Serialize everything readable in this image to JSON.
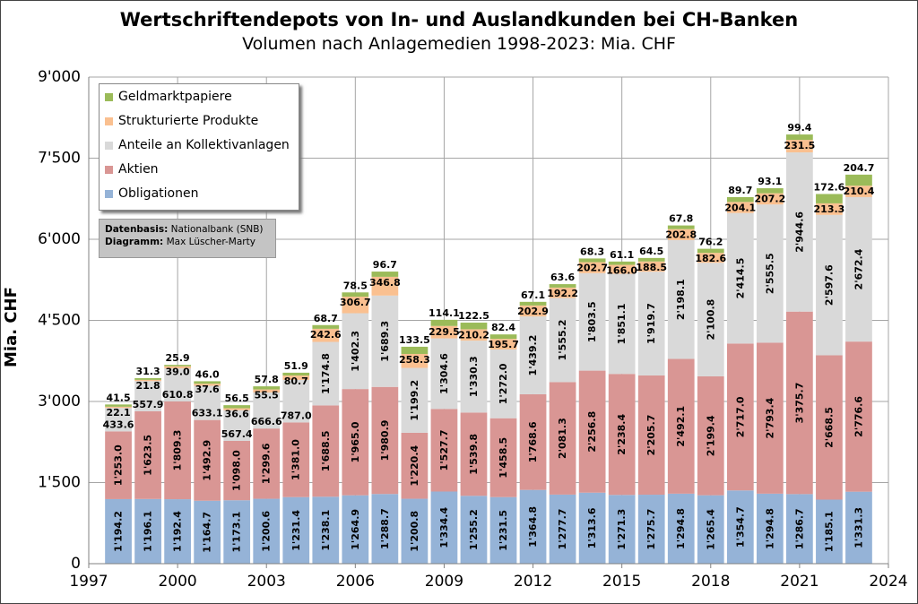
{
  "chart_data": {
    "type": "bar",
    "stacked": true,
    "title": "Wertschriftendepots  von In- und Auslandkunden bei CH-Banken",
    "subtitle": "Volumen nach Anlagemedien 1998-2023: Mia. CHF",
    "ylabel": "Mia. CHF",
    "xlabel": "",
    "ylim": [
      0,
      9000
    ],
    "xlim": [
      1997,
      2024
    ],
    "grid": true,
    "legend_position": "top-left",
    "y_ticks": [
      "0",
      "1'500",
      "3'000",
      "4'500",
      "6'000",
      "7'500",
      "9'000"
    ],
    "y_tick_values": [
      0,
      1500,
      3000,
      4500,
      6000,
      7500,
      9000
    ],
    "x_ticks": [
      "1997",
      "2000",
      "2003",
      "2006",
      "2009",
      "2012",
      "2015",
      "2018",
      "2021",
      "2024"
    ],
    "x_tick_values": [
      1997,
      2000,
      2003,
      2006,
      2009,
      2012,
      2015,
      2018,
      2021,
      2024
    ],
    "years": [
      1998,
      1999,
      2000,
      2001,
      2002,
      2003,
      2004,
      2005,
      2006,
      2007,
      2008,
      2009,
      2010,
      2011,
      2012,
      2013,
      2014,
      2015,
      2016,
      2017,
      2018,
      2019,
      2020,
      2021,
      2022,
      2023
    ],
    "series": [
      {
        "name": "Obligationen",
        "color": "#95b3d7",
        "values": [
          1194.2,
          1196.1,
          1192.4,
          1164.7,
          1173.1,
          1200.6,
          1231.4,
          1238.1,
          1264.9,
          1288.7,
          1200.8,
          1334.4,
          1255.2,
          1231.5,
          1364.8,
          1277.7,
          1313.6,
          1271.3,
          1275.7,
          1294.8,
          1265.4,
          1354.7,
          1294.8,
          1286.7,
          1185.1,
          1331.3
        ],
        "labels": [
          "1'194.2",
          "1'196.1",
          "1'192.4",
          "1'164.7",
          "1'173.1",
          "1'200.6",
          "1'231.4",
          "1'238.1",
          "1'264.9",
          "1'288.7",
          "1'200.8",
          "1'334.4",
          "1'255.2",
          "1'231.5",
          "1'364.8",
          "1'277.7",
          "1'313.6",
          "1'271.3",
          "1'275.7",
          "1'294.8",
          "1'265.4",
          "1'354.7",
          "1'294.8",
          "1'286.7",
          "1'185.1",
          "1'331.3"
        ]
      },
      {
        "name": "Aktien",
        "color": "#d99694",
        "values": [
          1253.0,
          1623.5,
          1809.3,
          1492.9,
          1098.0,
          1299.6,
          1381.0,
          1688.5,
          1965.0,
          1980.9,
          1220.4,
          1527.7,
          1539.8,
          1458.5,
          1768.6,
          2081.3,
          2256.8,
          2238.4,
          2205.7,
          2492.1,
          2199.4,
          2717.0,
          2793.4,
          3375.7,
          2668.5,
          2776.6
        ],
        "labels": [
          "1'253.0",
          "1'623.5",
          "1'809.3",
          "1'492.9",
          "1'098.0",
          "1'299.6",
          "1'381.0",
          "1'688.5",
          "1'965.0",
          "1'980.9",
          "1'220.4",
          "1'527.7",
          "1'539.8",
          "1'458.5",
          "1'768.6",
          "2'081.3",
          "2'256.8",
          "2'238.4",
          "2'205.7",
          "2'492.1",
          "2'199.4",
          "2'717.0",
          "2'793.4",
          "3'375.7",
          "2'668.5",
          "2'776.6"
        ]
      },
      {
        "name": "Anteile an Kollektivanlagen",
        "color": "#d9d9d9",
        "values": [
          433.6,
          557.9,
          610.8,
          633.1,
          567.4,
          666.6,
          787.0,
          1174.8,
          1402.3,
          1689.3,
          1199.2,
          1304.6,
          1330.3,
          1272.0,
          1439.2,
          1555.2,
          1803.5,
          1851.1,
          1919.7,
          2198.1,
          2100.8,
          2414.5,
          2555.5,
          2944.6,
          2597.6,
          2672.4
        ],
        "labels": [
          "433.6",
          "557.9",
          "610.8",
          "633.1",
          "567.4",
          "666.6",
          "787.0",
          "1'174.8",
          "1'402.3",
          "1'689.3",
          "1'199.2",
          "1'304.6",
          "1'330.3",
          "1'272.0",
          "1'439.2",
          "1'555.2",
          "1'803.5",
          "1'851.1",
          "1'919.7",
          "2'198.1",
          "2'100.8",
          "2'414.5",
          "2'555.5",
          "2'944.6",
          "2'597.6",
          "2'672.4"
        ]
      },
      {
        "name": "Strukturierte Produkte",
        "color": "#fac090",
        "values": [
          22.1,
          21.8,
          39.0,
          37.6,
          36.6,
          55.5,
          80.7,
          242.6,
          306.7,
          346.8,
          258.3,
          229.5,
          210.2,
          195.7,
          202.9,
          192.2,
          202.7,
          166.0,
          188.5,
          202.8,
          182.6,
          204.1,
          207.2,
          231.5,
          213.3,
          210.4
        ],
        "labels": [
          "22.1",
          "21.8",
          "39.0",
          "37.6",
          "36.6",
          "55.5",
          "80.7",
          "242.6",
          "306.7",
          "346.8",
          "258.3",
          "229.5",
          "210.2",
          "195.7",
          "202.9",
          "192.2",
          "202.7",
          "166.0",
          "188.5",
          "202.8",
          "182.6",
          "204.1",
          "207.2",
          "231.5",
          "213.3",
          "210.4"
        ]
      },
      {
        "name": "Geldmarktpapiere",
        "color": "#9bbb59",
        "values": [
          41.5,
          31.3,
          25.9,
          46.0,
          56.5,
          57.8,
          51.9,
          68.7,
          78.5,
          96.7,
          133.5,
          114.1,
          122.5,
          82.4,
          67.1,
          63.6,
          68.3,
          61.1,
          64.5,
          67.8,
          76.2,
          89.7,
          93.1,
          99.4,
          172.6,
          204.7
        ],
        "labels": [
          "41.5",
          "31.3",
          "25.9",
          "46.0",
          "56.5",
          "57.8",
          "51.9",
          "68.7",
          "78.5",
          "96.7",
          "133.5",
          "114.1",
          "122.5",
          "82.4",
          "67.1",
          "63.6",
          "68.3",
          "61.1",
          "64.5",
          "67.8",
          "76.2",
          "89.7",
          "93.1",
          "99.4",
          "172.6",
          "204.7"
        ]
      }
    ]
  },
  "legend": {
    "items": [
      {
        "label": "Geldmarktpapiere",
        "color": "#9bbb59"
      },
      {
        "label": "Strukturierte Produkte",
        "color": "#fac090"
      },
      {
        "label": "Anteile an Kollektivanlagen",
        "color": "#d9d9d9"
      },
      {
        "label": "Aktien",
        "color": "#d99694"
      },
      {
        "label": "Obligationen",
        "color": "#95b3d7"
      }
    ]
  },
  "source": {
    "basis_label": "Datenbasis:",
    "basis_value": "Nationalbank (SNB)",
    "diagram_label": "Diagramm:",
    "diagram_value": "Max Lüscher-Marty"
  }
}
